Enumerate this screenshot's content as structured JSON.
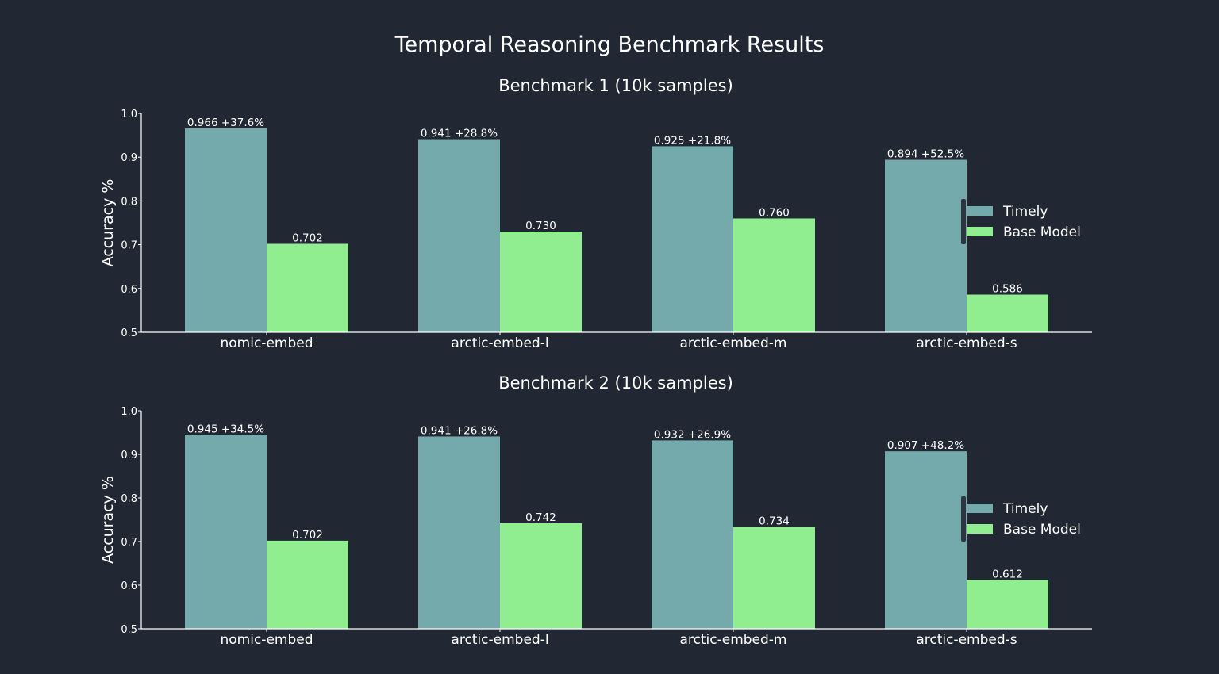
{
  "title": "Temporal Reasoning Benchmark Results",
  "colors": {
    "background": "#222833",
    "timely": "#74AAAC",
    "base": "#90EE90",
    "legend_frame": "#2E3440",
    "text": "#FFFFFF"
  },
  "chart_data": [
    {
      "type": "bar",
      "title": "Benchmark 1 (10k samples)",
      "xlabel": "",
      "ylabel": "Accuracy %",
      "ylim": [
        0.5,
        1.0
      ],
      "yticks": [
        "0.5",
        "0.6",
        "0.7",
        "0.8",
        "0.9",
        "1.0"
      ],
      "categories": [
        "nomic-embed",
        "arctic-embed-l",
        "arctic-embed-m",
        "arctic-embed-s"
      ],
      "series": [
        {
          "name": "Timely",
          "values": [
            0.966,
            0.941,
            0.925,
            0.894
          ],
          "labels": [
            "0.966 +37.6%",
            "0.941 +28.8%",
            "0.925 +21.8%",
            "0.894 +52.5%"
          ]
        },
        {
          "name": "Base Model",
          "values": [
            0.702,
            0.73,
            0.76,
            0.586
          ],
          "labels": [
            "0.702",
            "0.730",
            "0.760",
            "0.586"
          ]
        }
      ],
      "legend": "right",
      "grid": false
    },
    {
      "type": "bar",
      "title": "Benchmark 2 (10k samples)",
      "xlabel": "",
      "ylabel": "Accuracy %",
      "ylim": [
        0.5,
        1.0
      ],
      "yticks": [
        "0.5",
        "0.6",
        "0.7",
        "0.8",
        "0.9",
        "1.0"
      ],
      "categories": [
        "nomic-embed",
        "arctic-embed-l",
        "arctic-embed-m",
        "arctic-embed-s"
      ],
      "series": [
        {
          "name": "Timely",
          "values": [
            0.945,
            0.941,
            0.932,
            0.907
          ],
          "labels": [
            "0.945 +34.5%",
            "0.941 +26.8%",
            "0.932 +26.9%",
            "0.907 +48.2%"
          ]
        },
        {
          "name": "Base Model",
          "values": [
            0.702,
            0.742,
            0.734,
            0.612
          ],
          "labels": [
            "0.702",
            "0.742",
            "0.734",
            "0.612"
          ]
        }
      ],
      "legend": "right",
      "grid": false
    }
  ]
}
